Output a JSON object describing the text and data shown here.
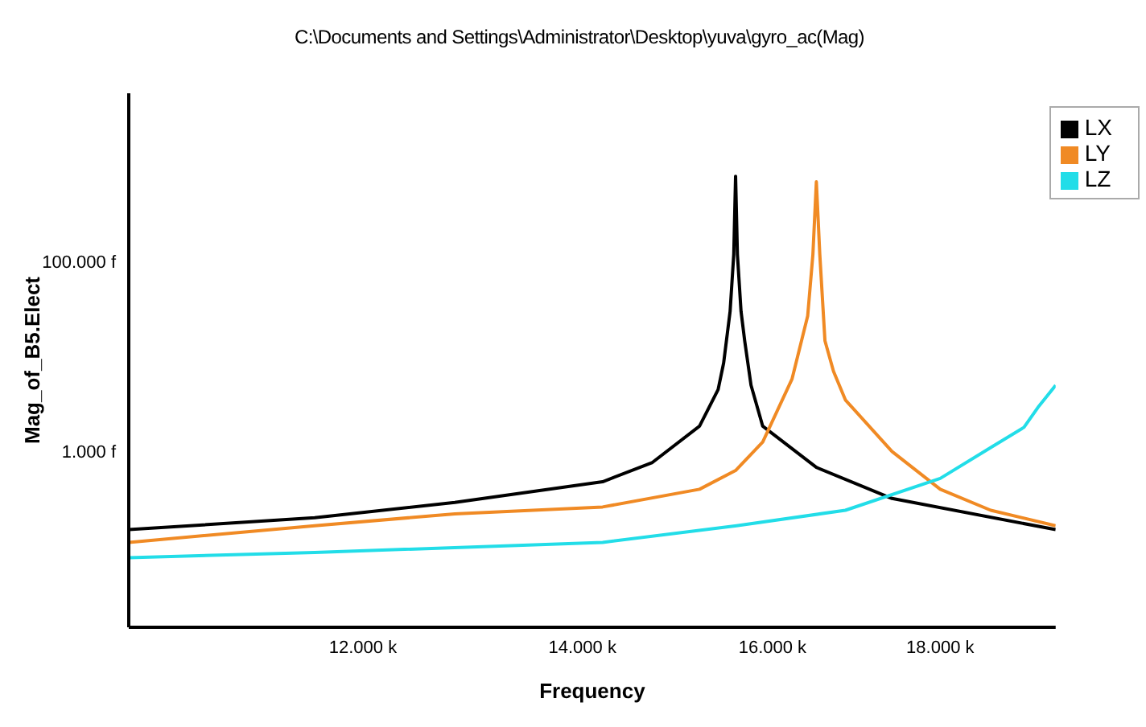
{
  "chart_data": {
    "type": "line",
    "title": "C:\\Documents and Settings\\Administrator\\Desktop\\yuva\\gyro_ac(Mag)",
    "xlabel": "Frequency",
    "ylabel": "Mag_of_B5.Elect",
    "log": "xy",
    "legend": "top right",
    "marker": "none",
    "xlim": [
      10180,
      19520
    ],
    "xticks": [
      {
        "value": 12000,
        "label": "12.000 k"
      },
      {
        "value": 14000,
        "label": "14.000 k"
      },
      {
        "value": 16000,
        "label": "16.000 k"
      },
      {
        "value": 18000,
        "label": "18.000 k"
      }
    ],
    "ylim": [
      0.014,
      6000
    ],
    "yticks": [
      {
        "value": 1,
        "label": "1.000 f"
      },
      {
        "value": 100,
        "label": "100.000 f"
      }
    ],
    "series": [
      {
        "name": "LX",
        "color": "#000000",
        "x": [
          10180,
          11600,
          12800,
          14200,
          14700,
          15200,
          15400,
          15460,
          15530,
          15570,
          15590,
          15610,
          15650,
          15690,
          15760,
          15890,
          16500,
          17400,
          19520
        ],
        "values": [
          0.15,
          0.2,
          0.29,
          0.48,
          0.76,
          1.85,
          4.5,
          8.6,
          30,
          120,
          800,
          120,
          30,
          14.7,
          5,
          1.85,
          0.68,
          0.32,
          0.15
        ]
      },
      {
        "name": "LY",
        "color": "#f08a24",
        "x": [
          10180,
          11600,
          12800,
          14200,
          15200,
          15590,
          15890,
          16220,
          16400,
          16460,
          16500,
          16540,
          16600,
          16700,
          16840,
          17400,
          18000,
          18650,
          19520
        ],
        "values": [
          0.11,
          0.165,
          0.22,
          0.26,
          0.4,
          0.63,
          1.26,
          5.8,
          27,
          120,
          700,
          120,
          14.7,
          7,
          3.5,
          1,
          0.4,
          0.24,
          0.165
        ]
      },
      {
        "name": "LZ",
        "color": "#22dde8",
        "x": [
          10180,
          11600,
          14200,
          15600,
          16840,
          18000,
          18650,
          19090,
          19290,
          19520
        ],
        "values": [
          0.076,
          0.086,
          0.11,
          0.165,
          0.24,
          0.52,
          1.1,
          1.8,
          3,
          5
        ]
      }
    ]
  }
}
